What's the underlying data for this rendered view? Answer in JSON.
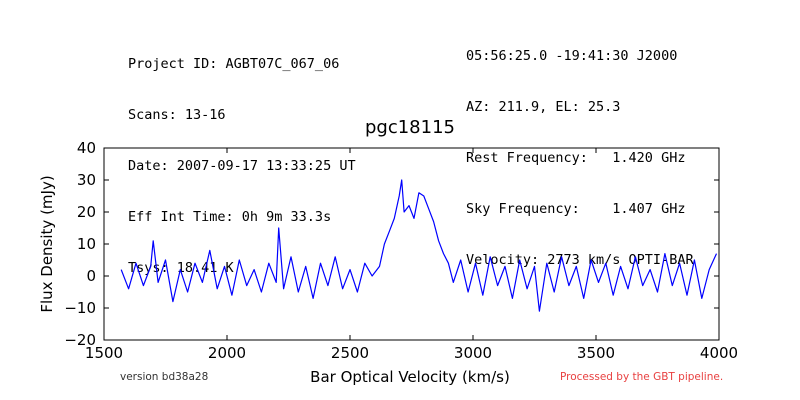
{
  "header": {
    "left_lines": [
      "Project ID: AGBT07C_067_06",
      "Scans: 13-16",
      "Date: 2007-09-17 13:33:25 UT",
      "Eff Int Time: 0h 9m 33.3s",
      "Tsys: 18.41 K"
    ],
    "right_lines": [
      "05:56:25.0 -19:41:30 J2000",
      "AZ: 211.9, EL: 25.3",
      "Rest Frequency:   1.420 GHz",
      "Sky Frequency:    1.407 GHz",
      "Velocity: 2773 km/s OPTI-BAR"
    ]
  },
  "footer": {
    "version": "version bd38a28",
    "pipeline": "Processed by the GBT pipeline.",
    "pipeline_color": "#e84040"
  },
  "chart_data": {
    "type": "line",
    "title": "pgc18115",
    "xlabel": "Bar Optical Velocity (km/s)",
    "ylabel": "Flux Density (mJy)",
    "xlim": [
      1500,
      4000
    ],
    "ylim": [
      -20,
      40
    ],
    "xticks": [
      1500,
      2000,
      2500,
      3000,
      3500,
      4000
    ],
    "yticks": [
      -20,
      -10,
      0,
      10,
      20,
      30,
      40
    ],
    "xtick_labels": [
      "1500",
      "2000",
      "2500",
      "3000",
      "3500",
      "4000"
    ],
    "ytick_labels": [
      "−20",
      "−10",
      "0",
      "10",
      "20",
      "30",
      "40"
    ],
    "grid": false,
    "line_color": "#0000ff",
    "series": [
      {
        "x": [
          1570,
          1600,
          1630,
          1660,
          1690,
          1700,
          1720,
          1750,
          1780,
          1810,
          1840,
          1870,
          1900,
          1930,
          1960,
          1990,
          2020,
          2050,
          2080,
          2110,
          2140,
          2170,
          2200,
          2210,
          2230,
          2260,
          2290,
          2320,
          2350,
          2380,
          2410,
          2440,
          2470,
          2500,
          2530,
          2560,
          2590,
          2620,
          2640,
          2660,
          2680,
          2700,
          2710,
          2720,
          2740,
          2760,
          2780,
          2800,
          2820,
          2840,
          2860,
          2880,
          2900,
          2920,
          2950,
          2980,
          3010,
          3040,
          3070,
          3100,
          3130,
          3160,
          3190,
          3220,
          3250,
          3270,
          3300,
          3330,
          3360,
          3390,
          3420,
          3450,
          3480,
          3510,
          3540,
          3570,
          3600,
          3630,
          3660,
          3690,
          3720,
          3750,
          3780,
          3810,
          3840,
          3870,
          3900,
          3930,
          3960,
          3990
        ],
        "y": [
          2,
          -4,
          4,
          -3,
          3,
          11,
          -2,
          5,
          -8,
          2,
          -5,
          4,
          -2,
          8,
          -4,
          3,
          -6,
          5,
          -3,
          2,
          -5,
          4,
          -2,
          15,
          -4,
          6,
          -5,
          3,
          -7,
          4,
          -3,
          6,
          -4,
          2,
          -5,
          4,
          0,
          3,
          10,
          14,
          18,
          25,
          30,
          20,
          22,
          18,
          26,
          25,
          21,
          17,
          11,
          7,
          4,
          -2,
          5,
          -5,
          4,
          -6,
          6,
          -3,
          3,
          -7,
          5,
          -4,
          3,
          -11,
          4,
          -5,
          6,
          -3,
          3,
          -7,
          5,
          -2,
          4,
          -6,
          3,
          -4,
          6,
          -3,
          2,
          -5,
          7,
          -3,
          4,
          -6,
          5,
          -7,
          2,
          7
        ]
      }
    ]
  }
}
